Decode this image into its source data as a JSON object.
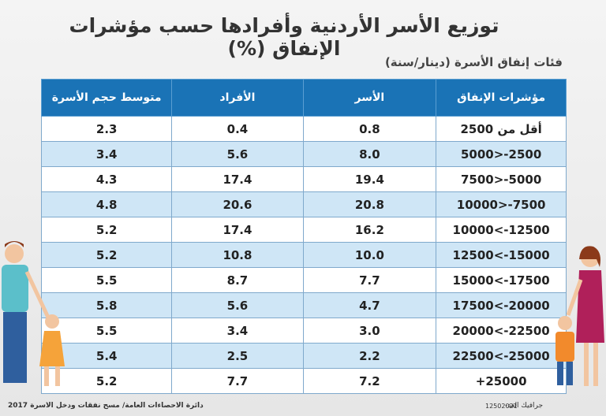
{
  "header": {
    "title": "توزيع الأسر الأردنية وأفرادها حسب مؤشرات الإنفاق (%)",
    "subtitle": "فئات إنفاق الأسرة (دينار/سنة)"
  },
  "table": {
    "columns": [
      "مؤشرات الإنفاق",
      "الأسر",
      "الأفراد",
      "متوسط حجم الأسرة"
    ],
    "rows": [
      [
        "أقل من 2500",
        "0.8",
        "0.4",
        "2.3"
      ],
      [
        "5000>-2500",
        "8.0",
        "5.6",
        "3.4"
      ],
      [
        "7500>-5000",
        "19.4",
        "17.4",
        "4.3"
      ],
      [
        "10000>-7500",
        "20.8",
        "20.6",
        "4.8"
      ],
      [
        "10000<-12500",
        "16.2",
        "17.4",
        "5.2"
      ],
      [
        "12500<-15000",
        "10.0",
        "10.8",
        "5.2"
      ],
      [
        "15000<-17500",
        "7.7",
        "8.7",
        "5.5"
      ],
      [
        "17500<-20000",
        "4.7",
        "5.6",
        "5.8"
      ],
      [
        "20000<-22500",
        "3.0",
        "3.4",
        "5.5"
      ],
      [
        "22500<-25000",
        "2.2",
        "2.5",
        "5.4"
      ],
      [
        "+25000",
        "7.2",
        "7.7",
        "5.2"
      ]
    ]
  },
  "footer": {
    "credit": "جرافيك الغد-",
    "code": "12502021",
    "source": "دائرة الاحصاءات العامة/ مسح نفقات ودخل الاسرة 2017"
  }
}
